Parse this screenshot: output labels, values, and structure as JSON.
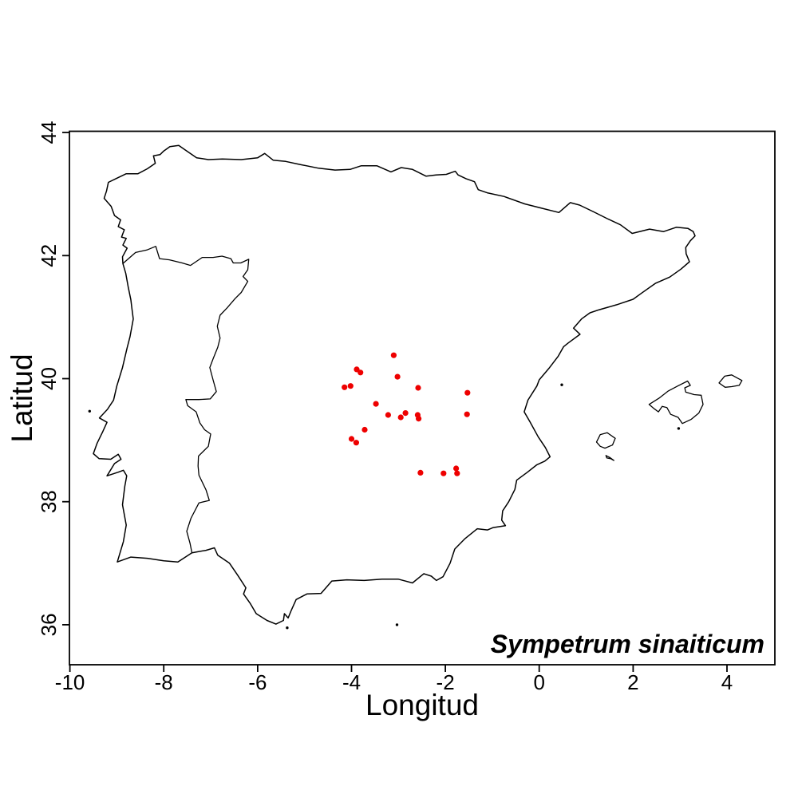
{
  "figure": {
    "xlabel": "Longitud",
    "ylabel": "Latitud",
    "annotation": "Sympetrum sinaiticum",
    "background": "#ffffff",
    "frame_color": "#000000"
  },
  "chart_data": {
    "type": "scatter",
    "title": "",
    "xlabel": "Longitud",
    "ylabel": "Latitud",
    "annotation": "Sympetrum sinaiticum",
    "xlim": [
      -10.01,
      5.02
    ],
    "ylim": [
      35.35,
      44.02
    ],
    "x_ticks": [
      -10,
      -8,
      -6,
      -4,
      -2,
      0,
      2,
      4
    ],
    "x_tick_labels": [
      "-10",
      "-8",
      "-6",
      "-4",
      "-2",
      "0",
      "2",
      "4"
    ],
    "y_ticks": [
      36,
      38,
      40,
      42,
      44
    ],
    "y_tick_labels": [
      "36",
      "38",
      "40",
      "42",
      "44"
    ],
    "grid": false,
    "legend": "none",
    "point_color": "#ee0000",
    "outline_color": "#000000",
    "points_lon_lat": [
      [
        -3.1,
        40.38
      ],
      [
        -3.89,
        40.15
      ],
      [
        -3.81,
        40.1
      ],
      [
        -3.02,
        40.03
      ],
      [
        -4.15,
        39.86
      ],
      [
        -4.02,
        39.88
      ],
      [
        -2.58,
        39.85
      ],
      [
        -1.53,
        39.77
      ],
      [
        -3.48,
        39.59
      ],
      [
        -3.22,
        39.41
      ],
      [
        -2.95,
        39.37
      ],
      [
        -2.85,
        39.44
      ],
      [
        -2.59,
        39.41
      ],
      [
        -2.57,
        39.35
      ],
      [
        -1.54,
        39.42
      ],
      [
        -3.72,
        39.17
      ],
      [
        -4.0,
        39.02
      ],
      [
        -3.9,
        38.96
      ],
      [
        -2.53,
        38.47
      ],
      [
        -2.04,
        38.46
      ],
      [
        -1.77,
        38.54
      ],
      [
        -1.75,
        38.46
      ]
    ],
    "map_outlines": {
      "iberia_coast_and_pyrenees": [
        [
          -1.79,
          43.37
        ],
        [
          -1.98,
          43.32
        ],
        [
          -2.2,
          43.31
        ],
        [
          -2.41,
          43.29
        ],
        [
          -2.7,
          43.4
        ],
        [
          -2.94,
          43.43
        ],
        [
          -3.16,
          43.36
        ],
        [
          -3.46,
          43.46
        ],
        [
          -3.79,
          43.46
        ],
        [
          -4.03,
          43.4
        ],
        [
          -4.35,
          43.39
        ],
        [
          -4.7,
          43.42
        ],
        [
          -5.1,
          43.48
        ],
        [
          -5.4,
          43.53
        ],
        [
          -5.67,
          43.55
        ],
        [
          -5.85,
          43.66
        ],
        [
          -6.0,
          43.59
        ],
        [
          -6.35,
          43.56
        ],
        [
          -6.75,
          43.57
        ],
        [
          -7.05,
          43.56
        ],
        [
          -7.3,
          43.59
        ],
        [
          -7.55,
          43.72
        ],
        [
          -7.68,
          43.79
        ],
        [
          -7.87,
          43.77
        ],
        [
          -8.0,
          43.7
        ],
        [
          -8.08,
          43.64
        ],
        [
          -8.22,
          43.62
        ],
        [
          -8.18,
          43.5
        ],
        [
          -8.35,
          43.41
        ],
        [
          -8.55,
          43.33
        ],
        [
          -8.8,
          43.33
        ],
        [
          -9.02,
          43.25
        ],
        [
          -9.18,
          43.19
        ],
        [
          -9.22,
          43.05
        ],
        [
          -9.27,
          42.93
        ],
        [
          -9.12,
          42.8
        ],
        [
          -9.05,
          42.65
        ],
        [
          -8.92,
          42.58
        ],
        [
          -8.97,
          42.47
        ],
        [
          -8.84,
          42.42
        ],
        [
          -8.9,
          42.3
        ],
        [
          -8.8,
          42.28
        ],
        [
          -8.87,
          42.17
        ],
        [
          -8.78,
          42.12
        ],
        [
          -8.88,
          41.98
        ],
        [
          -8.87,
          41.87
        ],
        [
          -8.81,
          41.71
        ],
        [
          -8.76,
          41.5
        ],
        [
          -8.7,
          41.28
        ],
        [
          -8.68,
          41.15
        ],
        [
          -8.65,
          40.97
        ],
        [
          -8.72,
          40.68
        ],
        [
          -8.78,
          40.5
        ],
        [
          -8.88,
          40.18
        ],
        [
          -9.0,
          39.88
        ],
        [
          -9.07,
          39.65
        ],
        [
          -9.2,
          39.5
        ],
        [
          -9.37,
          39.36
        ],
        [
          -9.21,
          39.29
        ],
        [
          -9.3,
          39.14
        ],
        [
          -9.42,
          38.95
        ],
        [
          -9.5,
          38.78
        ],
        [
          -9.38,
          38.7
        ],
        [
          -9.13,
          38.69
        ],
        [
          -8.97,
          38.77
        ],
        [
          -8.91,
          38.69
        ],
        [
          -9.05,
          38.62
        ],
        [
          -9.21,
          38.42
        ],
        [
          -8.97,
          38.48
        ],
        [
          -8.86,
          38.51
        ],
        [
          -8.79,
          38.42
        ],
        [
          -8.83,
          38.25
        ],
        [
          -8.88,
          37.95
        ],
        [
          -8.8,
          37.62
        ],
        [
          -8.86,
          37.35
        ],
        [
          -8.99,
          37.02
        ],
        [
          -8.7,
          37.1
        ],
        [
          -8.35,
          37.08
        ],
        [
          -8.0,
          37.04
        ],
        [
          -7.7,
          37.02
        ],
        [
          -7.4,
          37.17
        ],
        [
          -7.1,
          37.21
        ],
        [
          -6.92,
          37.25
        ],
        [
          -6.85,
          37.13
        ],
        [
          -6.6,
          37.0
        ],
        [
          -6.42,
          36.8
        ],
        [
          -6.25,
          36.6
        ],
        [
          -6.3,
          36.5
        ],
        [
          -6.16,
          36.35
        ],
        [
          -6.03,
          36.18
        ],
        [
          -5.8,
          36.07
        ],
        [
          -5.61,
          36.01
        ],
        [
          -5.45,
          36.07
        ],
        [
          -5.43,
          36.18
        ],
        [
          -5.35,
          36.11
        ],
        [
          -5.28,
          36.24
        ],
        [
          -5.18,
          36.41
        ],
        [
          -4.95,
          36.5
        ],
        [
          -4.65,
          36.51
        ],
        [
          -4.42,
          36.71
        ],
        [
          -4.1,
          36.73
        ],
        [
          -3.73,
          36.72
        ],
        [
          -3.35,
          36.74
        ],
        [
          -3.0,
          36.74
        ],
        [
          -2.7,
          36.68
        ],
        [
          -2.46,
          36.83
        ],
        [
          -2.3,
          36.79
        ],
        [
          -2.19,
          36.72
        ],
        [
          -2.05,
          36.78
        ],
        [
          -1.9,
          37.0
        ],
        [
          -1.8,
          37.23
        ],
        [
          -1.58,
          37.4
        ],
        [
          -1.32,
          37.56
        ],
        [
          -1.1,
          37.54
        ],
        [
          -0.98,
          37.58
        ],
        [
          -0.72,
          37.61
        ],
        [
          -0.8,
          37.7
        ],
        [
          -0.78,
          37.85
        ],
        [
          -0.65,
          38.0
        ],
        [
          -0.52,
          38.2
        ],
        [
          -0.48,
          38.35
        ],
        [
          -0.25,
          38.48
        ],
        [
          -0.05,
          38.6
        ],
        [
          0.12,
          38.66
        ],
        [
          0.23,
          38.73
        ],
        [
          0.13,
          38.88
        ],
        [
          -0.02,
          39.05
        ],
        [
          -0.2,
          39.3
        ],
        [
          -0.32,
          39.46
        ],
        [
          -0.24,
          39.65
        ],
        [
          -0.05,
          39.88
        ],
        [
          0.0,
          39.98
        ],
        [
          0.22,
          40.18
        ],
        [
          0.4,
          40.36
        ],
        [
          0.52,
          40.52
        ],
        [
          0.62,
          40.58
        ],
        [
          0.87,
          40.72
        ],
        [
          0.73,
          40.82
        ],
        [
          0.9,
          40.97
        ],
        [
          1.08,
          41.07
        ],
        [
          1.28,
          41.12
        ],
        [
          1.65,
          41.2
        ],
        [
          2.0,
          41.29
        ],
        [
          2.18,
          41.39
        ],
        [
          2.48,
          41.55
        ],
        [
          2.78,
          41.65
        ],
        [
          3.02,
          41.78
        ],
        [
          3.2,
          41.9
        ],
        [
          3.13,
          42.03
        ],
        [
          3.12,
          42.13
        ],
        [
          3.22,
          42.24
        ],
        [
          3.32,
          42.32
        ],
        [
          3.28,
          42.39
        ],
        [
          3.17,
          42.44
        ],
        [
          2.92,
          42.46
        ],
        [
          2.65,
          42.39
        ],
        [
          2.35,
          42.43
        ],
        [
          1.98,
          42.36
        ],
        [
          1.73,
          42.5
        ],
        [
          1.45,
          42.6
        ],
        [
          1.16,
          42.71
        ],
        [
          0.86,
          42.82
        ],
        [
          0.66,
          42.86
        ],
        [
          0.42,
          42.7
        ],
        [
          0.05,
          42.77
        ],
        [
          -0.31,
          42.84
        ],
        [
          -0.75,
          42.96
        ],
        [
          -1.11,
          43.02
        ],
        [
          -1.3,
          43.07
        ],
        [
          -1.38,
          43.2
        ],
        [
          -1.56,
          43.25
        ],
        [
          -1.73,
          43.31
        ]
      ],
      "portugal_spain_border": [
        [
          -8.87,
          41.87
        ],
        [
          -8.6,
          42.05
        ],
        [
          -8.36,
          42.09
        ],
        [
          -8.17,
          42.15
        ],
        [
          -8.09,
          41.95
        ],
        [
          -7.88,
          41.93
        ],
        [
          -7.61,
          41.88
        ],
        [
          -7.43,
          41.84
        ],
        [
          -7.18,
          41.97
        ],
        [
          -6.95,
          41.97
        ],
        [
          -6.76,
          41.99
        ],
        [
          -6.57,
          41.95
        ],
        [
          -6.52,
          41.88
        ],
        [
          -6.36,
          41.88
        ],
        [
          -6.19,
          41.94
        ],
        [
          -6.21,
          41.77
        ],
        [
          -6.31,
          41.66
        ],
        [
          -6.21,
          41.58
        ],
        [
          -6.35,
          41.4
        ],
        [
          -6.48,
          41.3
        ],
        [
          -6.65,
          41.15
        ],
        [
          -6.8,
          41.03
        ],
        [
          -6.86,
          40.85
        ],
        [
          -6.8,
          40.66
        ],
        [
          -6.85,
          40.51
        ],
        [
          -6.95,
          40.32
        ],
        [
          -7.02,
          40.18
        ],
        [
          -6.95,
          39.98
        ],
        [
          -6.88,
          39.79
        ],
        [
          -7.01,
          39.67
        ],
        [
          -7.25,
          39.66
        ],
        [
          -7.53,
          39.66
        ],
        [
          -7.49,
          39.56
        ],
        [
          -7.31,
          39.46
        ],
        [
          -7.23,
          39.28
        ],
        [
          -7.13,
          39.17
        ],
        [
          -7.0,
          39.1
        ],
        [
          -7.05,
          38.9
        ],
        [
          -7.26,
          38.74
        ],
        [
          -7.27,
          38.58
        ],
        [
          -7.25,
          38.43
        ],
        [
          -7.1,
          38.19
        ],
        [
          -7.03,
          38.02
        ],
        [
          -7.25,
          37.98
        ],
        [
          -7.42,
          37.73
        ],
        [
          -7.51,
          37.52
        ],
        [
          -7.44,
          37.32
        ],
        [
          -7.4,
          37.17
        ]
      ],
      "mallorca": [
        [
          2.34,
          39.58
        ],
        [
          2.55,
          39.68
        ],
        [
          2.75,
          39.8
        ],
        [
          2.95,
          39.88
        ],
        [
          3.16,
          39.96
        ],
        [
          3.22,
          39.89
        ],
        [
          3.1,
          39.85
        ],
        [
          3.12,
          39.78
        ],
        [
          3.3,
          39.74
        ],
        [
          3.45,
          39.73
        ],
        [
          3.49,
          39.58
        ],
        [
          3.4,
          39.44
        ],
        [
          3.24,
          39.34
        ],
        [
          3.05,
          39.27
        ],
        [
          2.96,
          39.37
        ],
        [
          2.8,
          39.42
        ],
        [
          2.72,
          39.53
        ],
        [
          2.62,
          39.55
        ],
        [
          2.54,
          39.46
        ],
        [
          2.45,
          39.51
        ]
      ],
      "menorca": [
        [
          3.83,
          39.93
        ],
        [
          3.95,
          40.04
        ],
        [
          4.1,
          40.06
        ],
        [
          4.22,
          40.01
        ],
        [
          4.32,
          39.97
        ],
        [
          4.26,
          39.89
        ],
        [
          4.1,
          39.87
        ],
        [
          3.96,
          39.86
        ]
      ],
      "ibiza": [
        [
          1.22,
          38.97
        ],
        [
          1.3,
          39.09
        ],
        [
          1.45,
          39.12
        ],
        [
          1.62,
          39.03
        ],
        [
          1.56,
          38.92
        ],
        [
          1.4,
          38.87
        ],
        [
          1.3,
          38.9
        ]
      ],
      "formentera": [
        [
          1.42,
          38.75
        ],
        [
          1.5,
          38.72
        ],
        [
          1.59,
          38.67
        ],
        [
          1.52,
          38.7
        ],
        [
          1.44,
          38.71
        ]
      ],
      "islets": [
        [
          -9.58,
          39.47
        ],
        [
          -5.37,
          35.95
        ],
        [
          -3.03,
          36.0
        ],
        [
          0.48,
          39.9
        ],
        [
          2.97,
          39.19
        ]
      ]
    }
  }
}
